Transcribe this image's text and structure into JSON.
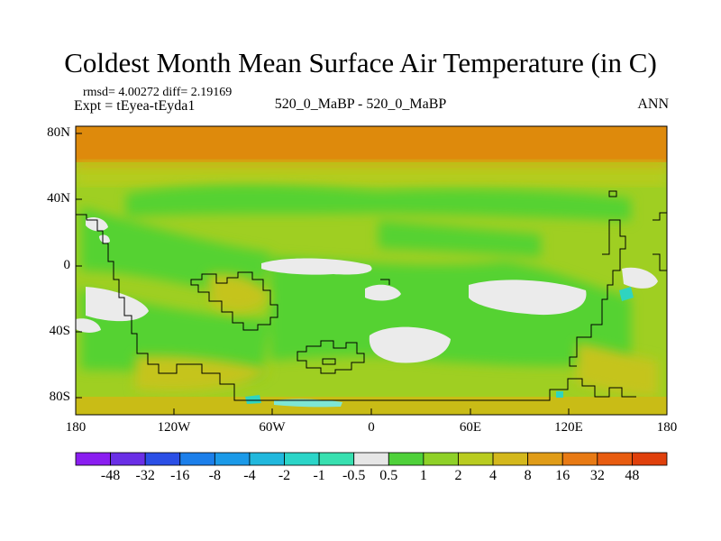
{
  "chart_data": {
    "type": "heatmap",
    "title": "Coldest Month Mean Surface Air Temperature (in C)",
    "stats": "rmsd= 4.00272 diff= 2.19169",
    "experiment": "Expt = tEyea-tEyda1",
    "cases": "520_0_MaBP - 520_0_MaBP",
    "season": "ANN",
    "x_axis": {
      "range": [
        -180,
        180
      ],
      "ticks": [
        "180",
        "120W",
        "60W",
        "0",
        "60E",
        "120E",
        "180"
      ]
    },
    "y_axis": {
      "range": [
        -90,
        90
      ],
      "ticks": [
        "80N",
        "40N",
        "0",
        "40S",
        "80S"
      ]
    },
    "colorbar": {
      "labels": [
        "-48",
        "-32",
        "-16",
        "-8",
        "-4",
        "-2",
        "-1",
        "-0.5",
        "0.5",
        "1",
        "2",
        "4",
        "8",
        "16",
        "32",
        "48"
      ],
      "colors": [
        "#8a1ef0",
        "#6a2fe6",
        "#2b4fe6",
        "#1c7fea",
        "#1b9ae8",
        "#21b8dd",
        "#2bd5c8",
        "#38e0b0",
        "#e6e6e6",
        "#4fd13a",
        "#8fd128",
        "#b9cc20",
        "#d4b81c",
        "#e09c18",
        "#e87a14",
        "#e85c10",
        "#e0400c"
      ]
    },
    "field_bands": [
      {
        "lat_range": [
          60,
          90
        ],
        "value": 16
      },
      {
        "lat_range": [
          45,
          60
        ],
        "value": 4
      },
      {
        "lat_range": [
          -90,
          45
        ],
        "value": 2
      },
      {
        "region": "south polar margin",
        "value": 4
      }
    ]
  }
}
